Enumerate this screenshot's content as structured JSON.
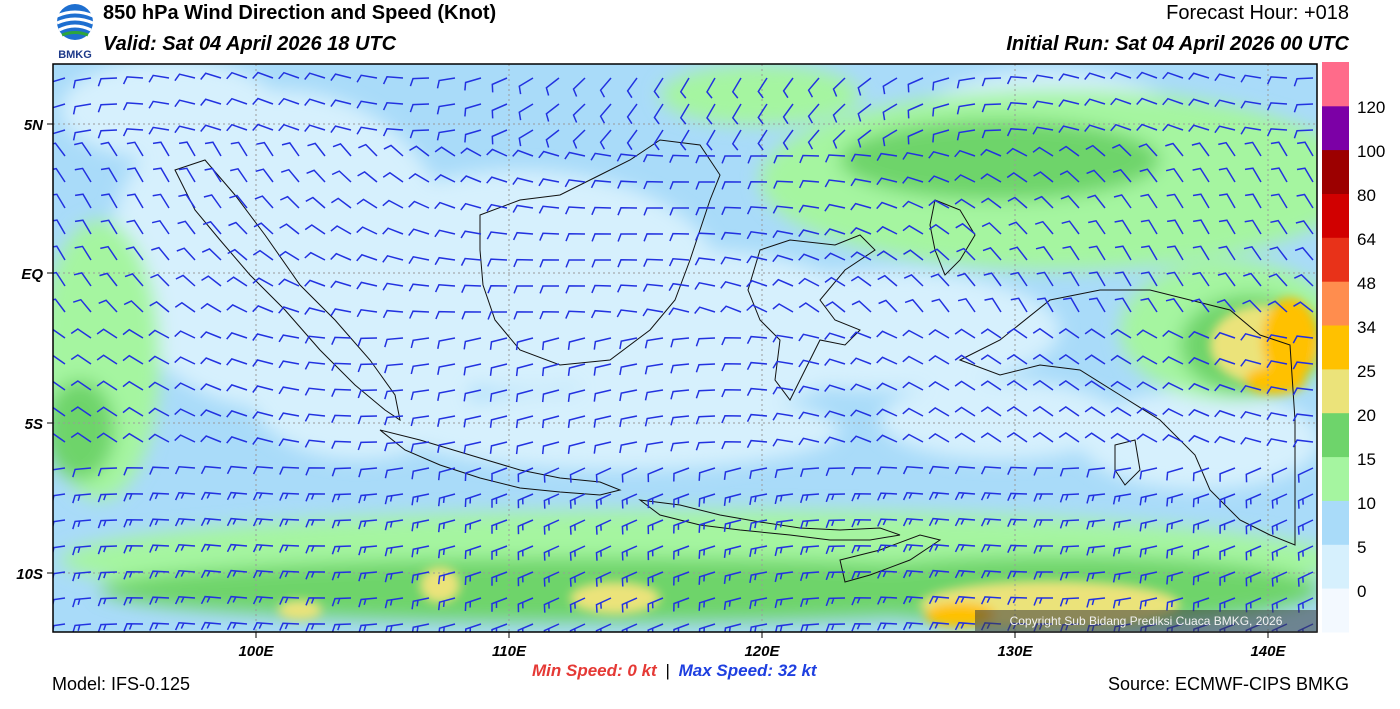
{
  "header": {
    "title": "850 hPa Wind Direction and Speed (Knot)",
    "valid": "Valid: Sat 04 April 2026 18 UTC",
    "forecast_hour": "Forecast Hour: +018",
    "initial_run": "Initial Run: Sat 04 April 2026 00 UTC"
  },
  "logo": {
    "text": "BMKG"
  },
  "map": {
    "lat_labels": [
      "5N",
      "EQ",
      "5S",
      "10S"
    ],
    "lon_labels": [
      "100E",
      "110E",
      "120E",
      "130E",
      "140E"
    ],
    "copyright": "Copyright Sub Bidang Prediksi Cuaca BMKG, 2026"
  },
  "colorbar": {
    "labels": [
      "0",
      "5",
      "10",
      "15",
      "20",
      "25",
      "34",
      "48",
      "64",
      "80",
      "100",
      "120"
    ],
    "colors": [
      "#f3f9ff",
      "#d6f0fd",
      "#a9dbf9",
      "#a5f5a0",
      "#6ed46b",
      "#ebe37a",
      "#ffc100",
      "#ff8d4e",
      "#e83219",
      "#d10000",
      "#9c0000",
      "#7c00a6",
      "#ff6b8a"
    ]
  },
  "footer": {
    "model": "Model: IFS-0.125",
    "min_speed_label": "Min Speed:",
    "min_speed_value": "0 kt",
    "max_speed_label": "Max Speed:",
    "max_speed_value": "32 kt",
    "source": "Source: ECMWF-CIPS BMKG"
  }
}
